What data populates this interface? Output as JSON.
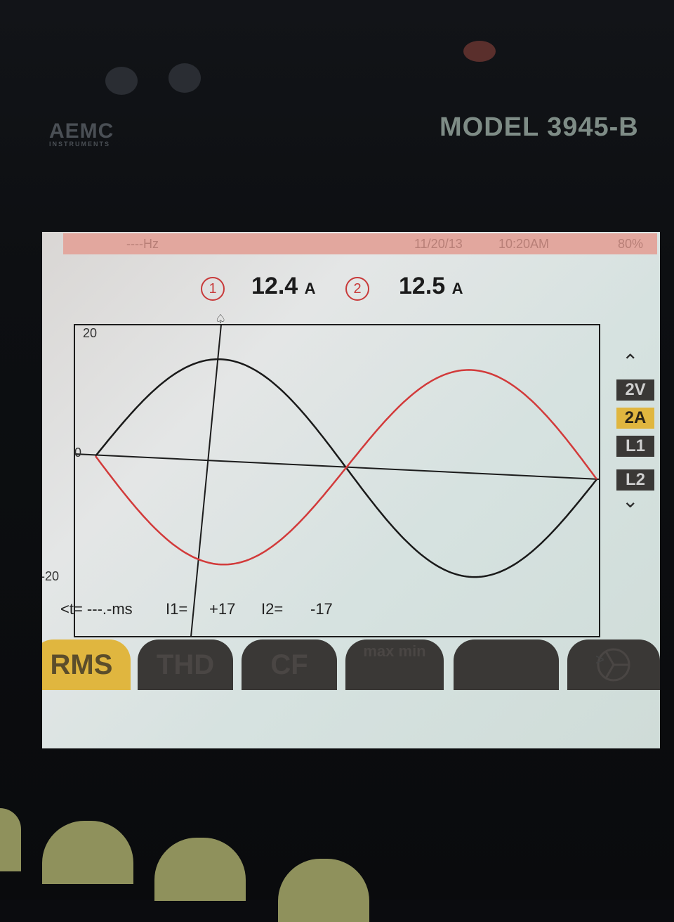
{
  "device": {
    "brand": "AEMC",
    "brand_sub": "INSTRUMENTS",
    "model": "MODEL 3945-B"
  },
  "status": {
    "frequency": "----Hz",
    "date": "11/20/13",
    "time": "10:20AM",
    "battery": "80%"
  },
  "measurements": [
    {
      "channel": "1",
      "value": "12.4",
      "unit": "A"
    },
    {
      "channel": "2",
      "value": "12.5",
      "unit": "A"
    }
  ],
  "chart_data": {
    "type": "line",
    "ylim": [
      -20,
      20
    ],
    "yticks": [
      "20",
      "0",
      "-20"
    ],
    "cursor_marker": "♤",
    "series": [
      {
        "color": "#1a1a1a",
        "phase": 0
      },
      {
        "color": "#d23a3a",
        "phase": 180
      }
    ]
  },
  "side_tabs": [
    {
      "label": "2V",
      "active": false
    },
    {
      "label": "2A",
      "active": true
    },
    {
      "label": "L1",
      "active": false
    },
    {
      "label": "L2",
      "active": false
    }
  ],
  "readout": {
    "t_label": "<t= ---.-ms",
    "i1_label": "I1=",
    "i1_value": "+17",
    "i2_label": "I2=",
    "i2_value": "-17"
  },
  "function_keys": [
    {
      "label": "RMS",
      "active": true
    },
    {
      "label": "THD",
      "active": false
    },
    {
      "label": "CF",
      "active": false
    },
    {
      "label": "max min",
      "active": false
    },
    {
      "label": "",
      "active": false
    },
    {
      "label": "",
      "active": false
    }
  ],
  "more_caret": ">"
}
